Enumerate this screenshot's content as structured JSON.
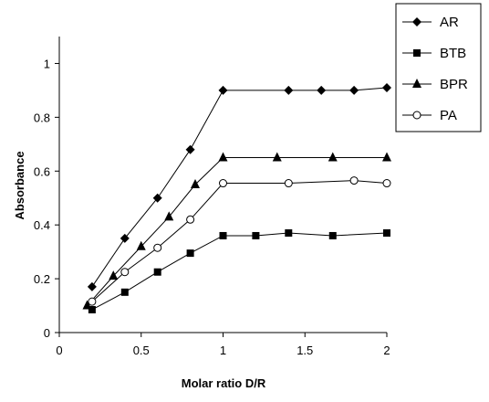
{
  "chart_data": {
    "type": "line",
    "title": "",
    "xlabel": "Molar ratio D/R",
    "ylabel": "Absorbance",
    "xlim": [
      0,
      2
    ],
    "ylim": [
      0,
      1.1
    ],
    "x_ticks": [
      "0",
      "0.5",
      "1",
      "1.5",
      "2"
    ],
    "y_ticks": [
      "0",
      "0.2",
      "0.4",
      "0.6",
      "0.8",
      "1"
    ],
    "x_tick_values": [
      0,
      0.5,
      1,
      1.5,
      2
    ],
    "y_tick_values": [
      0,
      0.2,
      0.4,
      0.6,
      0.8,
      1
    ],
    "grid": false,
    "legend_position": "top-right",
    "series": [
      {
        "name": "AR",
        "marker": "diamond",
        "x": [
          0.2,
          0.4,
          0.6,
          0.8,
          1.0,
          1.4,
          1.6,
          1.8,
          2.0
        ],
        "y": [
          0.17,
          0.35,
          0.5,
          0.68,
          0.9,
          0.9,
          0.9,
          0.9,
          0.91
        ]
      },
      {
        "name": "BTB",
        "marker": "square",
        "x": [
          0.2,
          0.4,
          0.6,
          0.8,
          1.0,
          1.2,
          1.4,
          1.67,
          2.0
        ],
        "y": [
          0.085,
          0.15,
          0.225,
          0.295,
          0.36,
          0.36,
          0.37,
          0.36,
          0.37
        ]
      },
      {
        "name": "BPR",
        "marker": "triangle",
        "x": [
          0.17,
          0.33,
          0.5,
          0.67,
          0.83,
          1.0,
          1.33,
          1.67,
          2.0
        ],
        "y": [
          0.1,
          0.21,
          0.32,
          0.43,
          0.55,
          0.65,
          0.65,
          0.65,
          0.65
        ]
      },
      {
        "name": "PA",
        "marker": "circle-open",
        "x": [
          0.2,
          0.4,
          0.6,
          0.8,
          1.0,
          1.4,
          1.8,
          2.0
        ],
        "y": [
          0.115,
          0.225,
          0.315,
          0.42,
          0.555,
          0.555,
          0.565,
          0.555
        ]
      }
    ]
  }
}
